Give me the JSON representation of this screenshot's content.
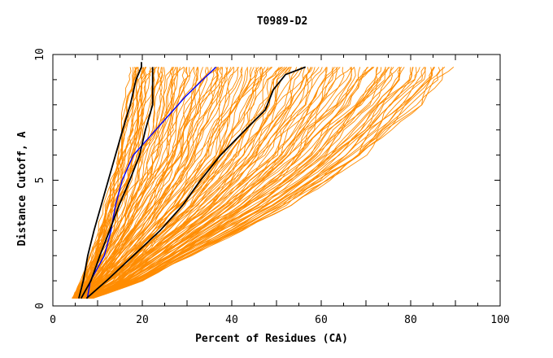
{
  "chart_data": {
    "type": "line",
    "title": "T0989-D2",
    "xlabel": "Percent of Residues (CA)",
    "ylabel": "Distance Cutoff, A",
    "xlim": [
      0,
      100
    ],
    "ylim": [
      0,
      10
    ],
    "x_ticks": [
      "0",
      "20",
      "40",
      "60",
      "80",
      "100"
    ],
    "y_ticks": [
      "0",
      "5",
      "10"
    ],
    "grid": false,
    "background_curve_count": 150,
    "background_color": "#ff8c00",
    "background_envelope": {
      "cutoff": [
        0.3,
        1,
        2,
        3,
        4,
        5,
        6,
        7,
        8,
        9,
        9.5
      ],
      "lowest_percent": [
        4.6,
        6.5,
        8.5,
        10.5,
        11.8,
        13.2,
        14.4,
        15.4,
        16.2,
        16.7,
        17.2
      ],
      "highest_percent": [
        8.5,
        20,
        31,
        42,
        53,
        62,
        70,
        76,
        82,
        87,
        89
      ]
    },
    "series": [
      {
        "color": "#000000",
        "x": [
          5.8,
          6.8,
          7.8,
          9.2,
          10.8,
          12.4,
          14.0,
          15.6,
          17.3,
          18.6,
          19.8,
          19.8
        ],
        "y": [
          0.3,
          1,
          2,
          3,
          4,
          5,
          6,
          7,
          8,
          9,
          9.5,
          9.7
        ]
      },
      {
        "color": "#0000ff",
        "x": [
          7.7,
          8.4,
          11.5,
          13.0,
          14.0,
          15.5,
          18.0,
          23.0,
          27.0,
          29.5,
          33.5,
          36.5
        ],
        "y": [
          0.3,
          1,
          2,
          3,
          4,
          5,
          6,
          7,
          7.8,
          8.3,
          9,
          9.5
        ]
      },
      {
        "color": "#000000",
        "x": [
          6.3,
          8.5,
          10.5,
          12.7,
          14.8,
          17.2,
          19.4,
          20.7,
          22.3,
          22.3,
          22.3
        ],
        "y": [
          0.3,
          1,
          2,
          3,
          4,
          5,
          6,
          7,
          8,
          9,
          9.5
        ]
      },
      {
        "color": "#000000",
        "x": [
          7.5,
          12.0,
          18.0,
          24.0,
          29.0,
          33.0,
          37.5,
          43.0,
          47.5,
          49.3,
          52.0,
          56.5
        ],
        "y": [
          0.3,
          1,
          2,
          3,
          4,
          5,
          6,
          7,
          7.8,
          8.6,
          9.2,
          9.5
        ]
      }
    ]
  }
}
